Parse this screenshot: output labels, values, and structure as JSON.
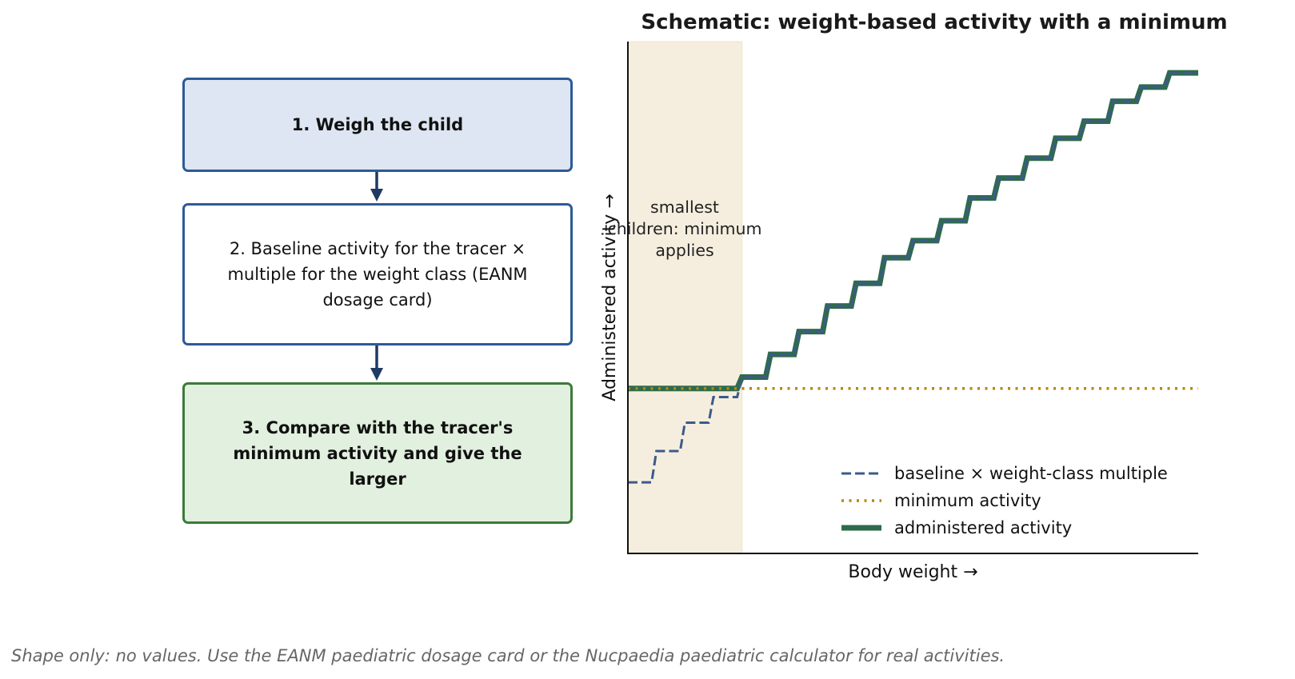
{
  "flowchart": {
    "steps": [
      {
        "label": "1. Weigh the child",
        "bold": true,
        "fill": "#dde6f2",
        "border": "#2d5a96"
      },
      {
        "label": "2. Baseline activity for the tracer × multiple for the weight class (EANM dosage card)",
        "bold": false,
        "fill": "#ffffff",
        "border": "#2d5a96"
      },
      {
        "label": "3. Compare with the tracer's minimum activity and give the larger",
        "bold": true,
        "fill": "#e2f0df",
        "border": "#3d7a3a"
      }
    ],
    "arrow_color": "#1f3a63"
  },
  "chart_data": {
    "type": "line",
    "title": "Schematic: weight-based activity with a minimum",
    "xlabel": "Body weight →",
    "ylabel": "Administered activity →",
    "xlim": [
      0,
      20
    ],
    "ylim": [
      0,
      18
    ],
    "grid": false,
    "legend_position": "lower-right",
    "shaded_region": {
      "x": [
        0,
        4
      ],
      "color": "#f5eedf",
      "annotation": "smallest children: minimum applies"
    },
    "series": [
      {
        "name": "baseline × weight-class multiple",
        "style": "dashed",
        "color": "#3d5a8a",
        "step_x": [
          0,
          1,
          2,
          3,
          4,
          5,
          6,
          7,
          8,
          9,
          10,
          11,
          12,
          13,
          14,
          15,
          16,
          17,
          18,
          19,
          20
        ],
        "values": [
          2.5,
          3.6,
          4.6,
          5.5,
          6.2,
          7.0,
          7.8,
          8.7,
          9.5,
          10.4,
          11.0,
          11.7,
          12.5,
          13.2,
          13.9,
          14.6,
          15.2,
          15.9,
          16.4,
          16.9,
          16.9
        ]
      },
      {
        "name": "minimum activity",
        "style": "dotted",
        "color": "#b8860b",
        "x": [
          0,
          20
        ],
        "values": [
          5.8,
          5.8
        ]
      },
      {
        "name": "administered activity",
        "style": "solid",
        "color": "#2e6b4a",
        "step_x": [
          0,
          4,
          5,
          6,
          7,
          8,
          9,
          10,
          11,
          12,
          13,
          14,
          15,
          16,
          17,
          18,
          19,
          20
        ],
        "values": [
          5.8,
          6.2,
          7.0,
          7.8,
          8.7,
          9.5,
          10.4,
          11.0,
          11.7,
          12.5,
          13.2,
          13.9,
          14.6,
          15.2,
          15.9,
          16.4,
          16.9,
          16.9
        ]
      }
    ]
  },
  "caption": "Shape only: no values. Use the EANM paediatric dosage card or the Nucpaedia paediatric calculator for real activities."
}
